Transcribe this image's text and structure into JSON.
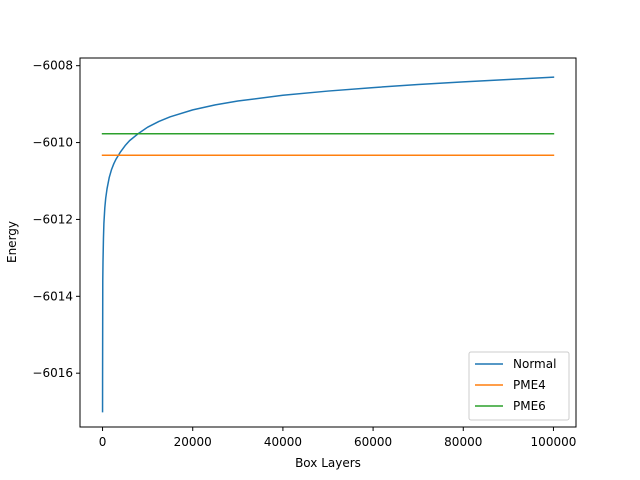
{
  "chart_data": {
    "type": "line",
    "title": "",
    "xlabel": "Box Layers",
    "ylabel": "Energy",
    "xlim": [
      -5000,
      105000
    ],
    "ylim": [
      -6017.4,
      -6007.8
    ],
    "xticks": [
      0,
      20000,
      40000,
      60000,
      80000,
      100000
    ],
    "xtick_labels": [
      "0",
      "20000",
      "40000",
      "60000",
      "80000",
      "100000"
    ],
    "yticks": [
      -6016,
      -6014,
      -6012,
      -6010,
      -6008
    ],
    "ytick_labels": [
      "−6016",
      "−6014",
      "−6012",
      "−6010",
      "−6008"
    ],
    "grid": false,
    "legend_position": "lower-right",
    "series": [
      {
        "name": "Normal",
        "color": "#1f77b4",
        "x": [
          1,
          10,
          50,
          100,
          200,
          300,
          500,
          700,
          1000,
          1500,
          2000,
          2500,
          3000,
          4000,
          5000,
          6000,
          8000,
          10000,
          12500,
          15000,
          20000,
          25000,
          30000,
          40000,
          50000,
          60000,
          70000,
          80000,
          90000,
          100000
        ],
        "y": [
          -6017.0,
          -6016.0,
          -6013.6,
          -6013.1,
          -6012.5,
          -6012.1,
          -6011.7,
          -6011.45,
          -6011.2,
          -6010.9,
          -6010.7,
          -6010.55,
          -6010.43,
          -6010.24,
          -6010.08,
          -6009.95,
          -6009.76,
          -6009.6,
          -6009.45,
          -6009.33,
          -6009.15,
          -6009.02,
          -6008.92,
          -6008.77,
          -6008.66,
          -6008.57,
          -6008.49,
          -6008.42,
          -6008.36,
          -6008.3
        ]
      },
      {
        "name": "PME4",
        "color": "#ff7f0e",
        "x": [
          0,
          100000
        ],
        "y": [
          -6010.33,
          -6010.33
        ]
      },
      {
        "name": "PME6",
        "color": "#2ca02c",
        "x": [
          0,
          100000
        ],
        "y": [
          -6009.77,
          -6009.77
        ]
      }
    ]
  }
}
